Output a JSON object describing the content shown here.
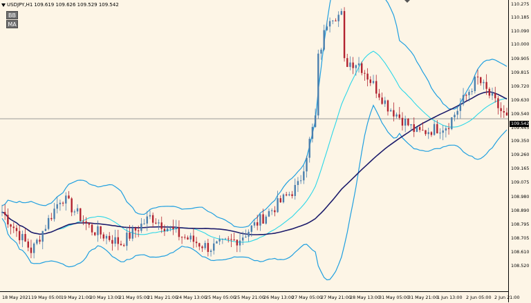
{
  "header": {
    "symbol": "USDJPY,H1",
    "ohlc": "109.619 109.626 109.529 109.542"
  },
  "indicator_buttons": [
    "BB",
    "MA"
  ],
  "current_price": "109.542",
  "y_axis": {
    "labels": [
      "110.275",
      "110.185",
      "110.090",
      "110.000",
      "109.905",
      "109.815",
      "109.720",
      "109.630",
      "109.540",
      "109.445",
      "109.350",
      "109.260",
      "109.165",
      "109.075",
      "108.980",
      "108.890",
      "108.795",
      "108.705",
      "108.610",
      "108.520"
    ]
  },
  "x_axis": {
    "labels": [
      "18 May 2021",
      "19 May 05:00",
      "19 May 21:00",
      "20 May 13:00",
      "21 May 05:00",
      "21 May 21:00",
      "24 May 13:00",
      "25 May 05:00",
      "25 May 21:00",
      "26 May 13:00",
      "27 May 05:00",
      "27 May 21:00",
      "28 May 13:00",
      "31 May 05:00",
      "31 May 21:00",
      "1 Jun 13:00",
      "2 Jun 05:00",
      "2 Jun 21:00"
    ]
  },
  "colors": {
    "background": "#fdf5e6",
    "bull": "#4a7fae",
    "bear": "#b2222f",
    "bb_outer": "#1e9fe0",
    "bb_mid": "#2ad7e8",
    "ma": "#1b1a6a",
    "price_line": "#8c8c8c"
  },
  "chart_data": {
    "type": "candlestick",
    "title": "USDJPY,H1",
    "indicators": [
      "Bollinger Bands",
      "Moving Average"
    ],
    "ylim": [
      108.52,
      110.275
    ],
    "last_price": 109.542,
    "key_levels": [
      {
        "x": "18 May 2021",
        "close": 108.95
      },
      {
        "x": "19 May 05:00",
        "close": 108.7
      },
      {
        "x": "19 May 21:00",
        "close": 109.05
      },
      {
        "x": "20 May 13:00",
        "close": 108.84
      },
      {
        "x": "21 May 05:00",
        "close": 108.75
      },
      {
        "x": "21 May 21:00",
        "close": 108.92
      },
      {
        "x": "24 May 13:00",
        "close": 108.8
      },
      {
        "x": "25 May 05:00",
        "close": 108.72
      },
      {
        "x": "25 May 21:00",
        "close": 108.78
      },
      {
        "x": "26 May 13:00",
        "close": 108.95
      },
      {
        "x": "27 May 05:00",
        "close": 109.12
      },
      {
        "x": "27 May 21:00",
        "close": 109.9
      },
      {
        "x": "28 May 13:00",
        "close": 109.9
      },
      {
        "x": "31 May 05:00",
        "close": 109.62
      },
      {
        "x": "31 May 21:00",
        "close": 109.45
      },
      {
        "x": "1 Jun 13:00",
        "close": 109.5
      },
      {
        "x": "2 Jun 05:00",
        "close": 109.8
      },
      {
        "x": "2 Jun 21:00",
        "close": 109.54
      }
    ]
  }
}
